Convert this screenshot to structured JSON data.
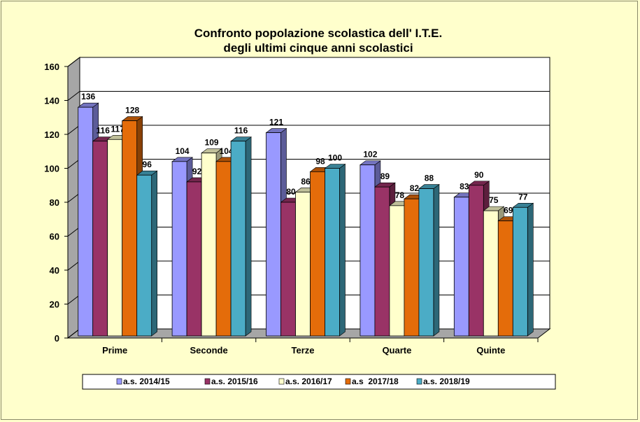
{
  "chart_data": {
    "type": "bar",
    "title": [
      "Confronto popolazione scolastica dell' I.T.E.",
      "degli ultimi cinque anni scolastici"
    ],
    "categories": [
      "Prime",
      "Seconde",
      "Terze",
      "Quarte",
      "Quinte"
    ],
    "series": [
      {
        "name": "a.s. 2014/15",
        "color": "#9999FF",
        "values": [
          136,
          104,
          121,
          102,
          83
        ]
      },
      {
        "name": "a.s. 2015/16",
        "color": "#993366",
        "values": [
          116,
          92,
          80,
          89,
          90
        ]
      },
      {
        "name": "a.s. 2016/17",
        "color": "#FFFFCC",
        "values": [
          117,
          109,
          86,
          78,
          75
        ]
      },
      {
        "name": "a.s  2017/18",
        "color": "#E46C0A",
        "values": [
          128,
          104,
          98,
          82,
          69
        ]
      },
      {
        "name": "a.s. 2018/19",
        "color": "#4BACC6",
        "values": [
          96,
          116,
          100,
          88,
          77
        ]
      }
    ],
    "ylim": [
      0,
      160
    ],
    "yticks": [
      "0",
      "20",
      "40",
      "60",
      "80",
      "100",
      "120",
      "140",
      "160"
    ],
    "grid": true,
    "legend": "bottom",
    "background": "#FFFFCC"
  }
}
